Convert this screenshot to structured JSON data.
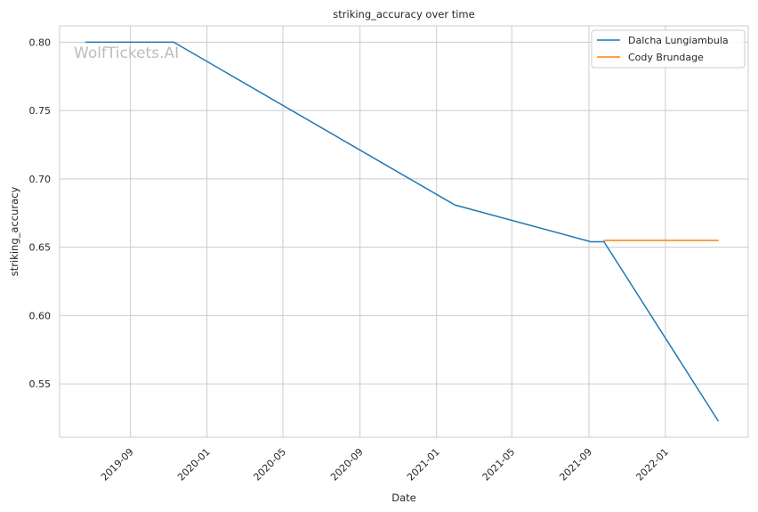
{
  "chart_data": {
    "type": "line",
    "title": "striking_accuracy over time",
    "xlabel": "Date",
    "ylabel": "striking_accuracy",
    "watermark": "WolfTickets.AI",
    "x_ticks": [
      "2019-09",
      "2020-01",
      "2020-05",
      "2020-09",
      "2021-01",
      "2021-05",
      "2021-09",
      "2022-01"
    ],
    "y_ticks": [
      "0.55",
      "0.60",
      "0.65",
      "0.70",
      "0.75",
      "0.80"
    ],
    "xlim": [
      "2019-05-11",
      "2022-05-13"
    ],
    "ylim": [
      0.511,
      0.812
    ],
    "grid": true,
    "legend_position": "top-right",
    "series": [
      {
        "name": "Dalcha Lungiambula",
        "color": "#1f77b4",
        "points": [
          {
            "x": "2019-06-22",
            "y": 0.8
          },
          {
            "x": "2019-11-09",
            "y": 0.8
          },
          {
            "x": "2021-01-30",
            "y": 0.681
          },
          {
            "x": "2021-09-04",
            "y": 0.654
          },
          {
            "x": "2021-09-25",
            "y": 0.654
          },
          {
            "x": "2022-03-26",
            "y": 0.523
          }
        ]
      },
      {
        "name": "Cody Brundage",
        "color": "#ff7f0e",
        "points": [
          {
            "x": "2021-09-25",
            "y": 0.655
          },
          {
            "x": "2022-03-26",
            "y": 0.655
          }
        ]
      }
    ]
  }
}
